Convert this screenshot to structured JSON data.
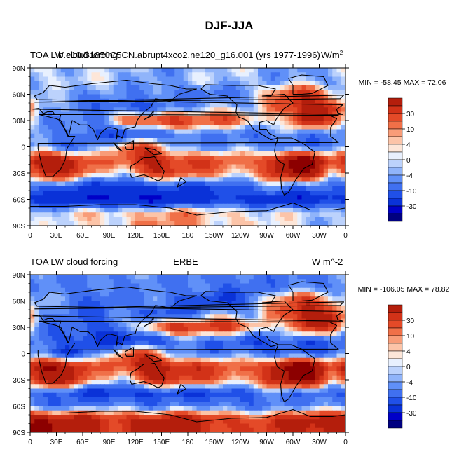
{
  "figure": {
    "title": "DJF-JJA"
  },
  "chart_data": [
    {
      "type": "heatmap",
      "title_left": "TOA LW cloud forcing",
      "title_center": "b.e10.B1850C5CN.abrupt4xco2.ne120_g16.001 (yrs 1977-1996)",
      "units": "W/m",
      "units_sup": "2",
      "stats": "MIN = -58.45 MAX =  72.06",
      "x_ticks": [
        "0",
        "30E",
        "60E",
        "90E",
        "120E",
        "150E",
        "180",
        "150W",
        "120W",
        "90W",
        "60W",
        "30W",
        "0"
      ],
      "y_ticks": [
        "90N",
        "60N",
        "30N",
        "0",
        "30S",
        "60S",
        "90S"
      ],
      "x_range": [
        0,
        360
      ],
      "y_range": [
        -90,
        90
      ],
      "colorbar_labels": [
        "30",
        "10",
        "4",
        "0",
        "-4",
        "-10",
        "-30"
      ],
      "field": [
        {
          "lat": 75,
          "values": [
            -3,
            -2,
            -4,
            -5,
            -6,
            -6,
            -5,
            -4,
            -4,
            -6,
            -8,
            -6
          ]
        },
        {
          "lat": 60,
          "values": [
            -6,
            -10,
            -8,
            -6,
            -10,
            -12,
            -14,
            -10,
            -6,
            10,
            20,
            4
          ]
        },
        {
          "lat": 45,
          "values": [
            -4,
            -6,
            -12,
            -18,
            -20,
            -10,
            -2,
            -4,
            -8,
            14,
            25,
            18
          ]
        },
        {
          "lat": 30,
          "values": [
            -6,
            -10,
            -14,
            8,
            18,
            20,
            10,
            14,
            6,
            -2,
            24,
            10
          ]
        },
        {
          "lat": 15,
          "values": [
            -8,
            -12,
            -16,
            -20,
            -18,
            -14,
            -8,
            -10,
            -14,
            -10,
            -12,
            -10
          ]
        },
        {
          "lat": 0,
          "values": [
            -10,
            -14,
            -8,
            6,
            12,
            -4,
            -10,
            -8,
            -10,
            -14,
            -12,
            -10
          ]
        },
        {
          "lat": -15,
          "values": [
            30,
            26,
            6,
            10,
            25,
            18,
            14,
            10,
            8,
            30,
            40,
            10
          ]
        },
        {
          "lat": -30,
          "values": [
            22,
            18,
            4,
            -2,
            18,
            14,
            10,
            6,
            4,
            24,
            30,
            4
          ]
        },
        {
          "lat": -45,
          "values": [
            -12,
            -16,
            -20,
            -22,
            -20,
            -18,
            -18,
            -16,
            -14,
            -8,
            -10,
            -12
          ]
        },
        {
          "lat": -60,
          "values": [
            -24,
            -30,
            -32,
            -34,
            -32,
            -28,
            -26,
            -24,
            -22,
            -26,
            -30,
            -26
          ]
        },
        {
          "lat": -75,
          "values": [
            -4,
            -2,
            2,
            2,
            4,
            6,
            4,
            2,
            0,
            -2,
            -2,
            -4
          ]
        }
      ]
    },
    {
      "type": "heatmap",
      "title_left": "TOA LW cloud forcing",
      "title_center": "ERBE",
      "units": "W m^-2",
      "stats": "MIN = -106.05 MAX =  78.82",
      "x_ticks": [
        "0",
        "30E",
        "60E",
        "90E",
        "120E",
        "150E",
        "180",
        "150W",
        "120W",
        "90W",
        "60W",
        "30W",
        "0"
      ],
      "y_ticks": [
        "90N",
        "60N",
        "30N",
        "0",
        "30S",
        "60S",
        "90S"
      ],
      "x_range": [
        0,
        360
      ],
      "y_range": [
        -90,
        90
      ],
      "colorbar_labels": [
        "30",
        "10",
        "4",
        "0",
        "-4",
        "-10",
        "-30"
      ],
      "field": [
        {
          "lat": 75,
          "values": [
            -8,
            -10,
            -12,
            -10,
            -8,
            -10,
            -12,
            -14,
            -12,
            -10,
            -12,
            -10
          ]
        },
        {
          "lat": 60,
          "values": [
            -6,
            -12,
            -14,
            -10,
            -8,
            -16,
            -18,
            -20,
            -10,
            8,
            18,
            6
          ]
        },
        {
          "lat": 45,
          "values": [
            -8,
            -12,
            -16,
            -10,
            -18,
            -20,
            -6,
            -4,
            -10,
            14,
            26,
            20
          ]
        },
        {
          "lat": 30,
          "values": [
            -10,
            -14,
            -18,
            -12,
            10,
            22,
            16,
            18,
            10,
            -4,
            22,
            14
          ]
        },
        {
          "lat": 15,
          "values": [
            -12,
            -18,
            -22,
            -24,
            -22,
            -16,
            -10,
            -14,
            -20,
            -16,
            -18,
            -14
          ]
        },
        {
          "lat": 0,
          "values": [
            -14,
            -20,
            -10,
            8,
            14,
            -6,
            -12,
            -10,
            -12,
            -16,
            -14,
            -12
          ]
        },
        {
          "lat": -15,
          "values": [
            32,
            28,
            8,
            12,
            30,
            22,
            16,
            12,
            10,
            32,
            42,
            12
          ]
        },
        {
          "lat": -30,
          "values": [
            26,
            22,
            4,
            -4,
            20,
            16,
            12,
            8,
            6,
            26,
            34,
            6
          ]
        },
        {
          "lat": -45,
          "values": [
            -14,
            -18,
            -22,
            -24,
            -22,
            -20,
            -20,
            -18,
            -16,
            -10,
            -12,
            -14
          ]
        },
        {
          "lat": -60,
          "values": [
            -10,
            -12,
            -8,
            -10,
            -12,
            -8,
            -10,
            -14,
            -12,
            -10,
            -8,
            -10
          ]
        },
        {
          "lat": -75,
          "values": [
            30,
            24,
            20,
            18,
            22,
            26,
            20,
            16,
            14,
            18,
            22,
            26
          ]
        }
      ]
    }
  ]
}
